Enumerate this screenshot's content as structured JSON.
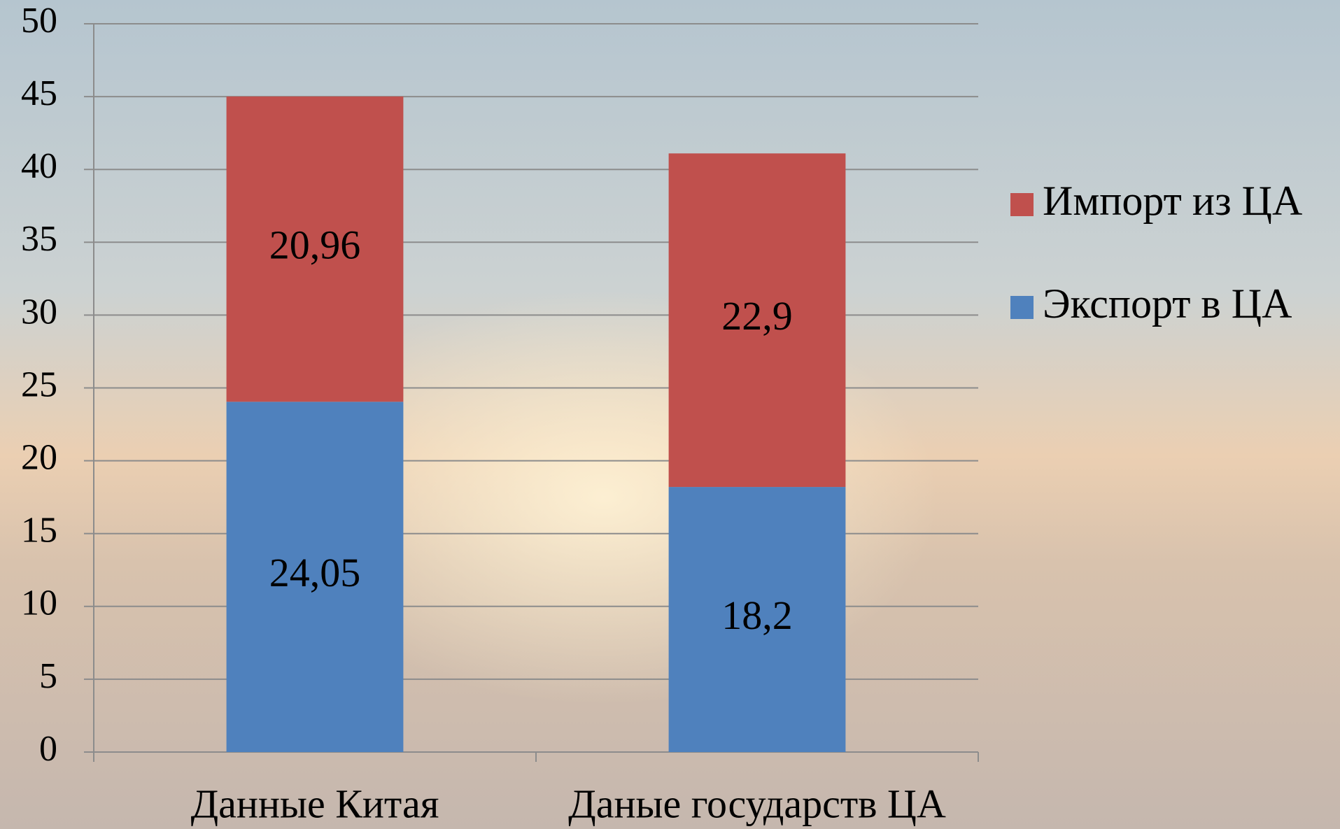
{
  "chart_data": {
    "type": "stacked_bar",
    "categories": [
      "Данные Китая",
      "Даные государств ЦА"
    ],
    "series": [
      {
        "name": "Экспорт в ЦА",
        "color": "#4f81bd",
        "values": [
          24.05,
          18.2
        ],
        "value_labels": [
          "24,05",
          "18,2"
        ]
      },
      {
        "name": "Импорт из ЦА",
        "color": "#c0504d",
        "values": [
          20.96,
          22.9
        ],
        "value_labels": [
          "20,96",
          "22,9"
        ]
      }
    ],
    "ylim": [
      0,
      50
    ],
    "yticks": [
      0,
      5,
      10,
      15,
      20,
      25,
      30,
      35,
      40,
      45,
      50
    ],
    "grid": true,
    "legend": "right"
  }
}
